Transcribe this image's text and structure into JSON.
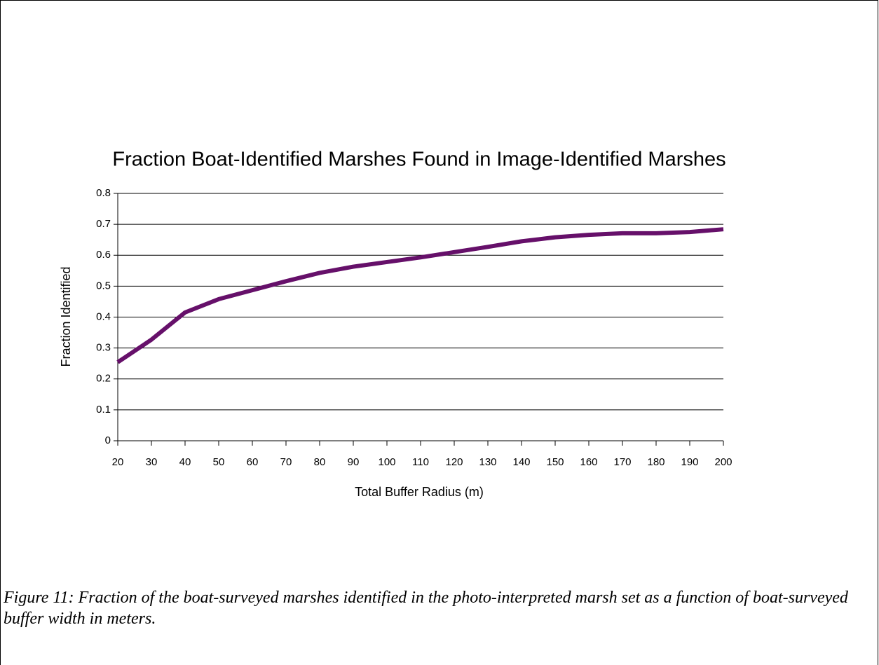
{
  "chart_data": {
    "type": "line",
    "title": "Fraction Boat-Identified Marshes Found in Image-Identified Marshes",
    "x_label": "Total Buffer Radius (m)",
    "y_label": "Fraction Identified",
    "x": [
      20,
      30,
      40,
      50,
      60,
      70,
      80,
      90,
      100,
      110,
      120,
      130,
      140,
      150,
      160,
      170,
      180,
      190,
      200
    ],
    "series": [
      {
        "name": "Fraction Identified",
        "color": "#66106a",
        "values": [
          0.254,
          0.327,
          0.415,
          0.458,
          0.487,
          0.516,
          0.543,
          0.563,
          0.578,
          0.593,
          0.61,
          0.627,
          0.645,
          0.658,
          0.666,
          0.671,
          0.671,
          0.675,
          0.684
        ]
      }
    ],
    "xlim": [
      20,
      200
    ],
    "xticks": [
      20,
      30,
      40,
      50,
      60,
      70,
      80,
      90,
      100,
      110,
      120,
      130,
      140,
      150,
      160,
      170,
      180,
      190,
      200
    ],
    "ylim": [
      0,
      0.8
    ],
    "yticks": [
      0,
      0.1,
      0.2,
      0.3,
      0.4,
      0.5,
      0.6,
      0.7,
      0.8
    ],
    "grid": true,
    "caption": "Figure 11: Fraction of the boat-surveyed marshes identified in the photo-interpreted marsh set as a function of boat-surveyed buffer width in meters."
  }
}
